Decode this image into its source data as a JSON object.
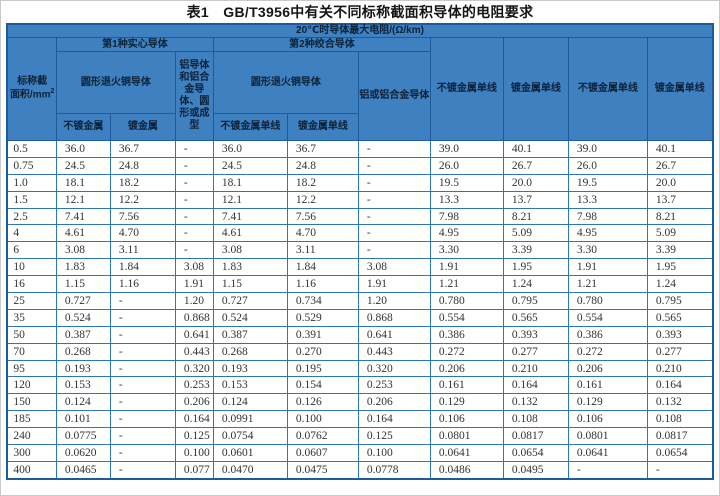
{
  "title": "表1　GB/T3956中有关不同标称截面积导体的电阻要求",
  "colors": {
    "header_bg": "#3e80c0",
    "header_border": "#1d5c9c",
    "grid_border": "#2e75b6",
    "data_text": "#333333"
  },
  "header": {
    "max_resistance": "20℃时导体最大电阻/(Ω/km)",
    "area_line1": "标称截",
    "area_line2": "面积/mm",
    "area_sup": "2",
    "group_solid": "第1种实心导体",
    "group_stranded": "第2种绞合导体",
    "copper_solid": "圆形退火铜导体",
    "copper_stranded": "圆形退火铜导体",
    "aluminium_solid": "铝导体和铝合金导体、圆形或成型",
    "aluminium_stranded": "铝或铝合金导体",
    "unplated": "不镀金属",
    "plated": "镀金属",
    "unplated_wire": "不镀金属单线",
    "plated_wire": "镀金属单线",
    "col8": "不镀金属单线",
    "col9": "镀金属单线",
    "col10": "不镀金属单线",
    "col11": "镀金属单线"
  },
  "table": {
    "rows": [
      [
        "0.5",
        "36.0",
        "36.7",
        "-",
        "36.0",
        "36.7",
        "-",
        "39.0",
        "40.1",
        "39.0",
        "40.1"
      ],
      [
        "0.75",
        "24.5",
        "24.8",
        "-",
        "24.5",
        "24.8",
        "-",
        "26.0",
        "26.7",
        "26.0",
        "26.7"
      ],
      [
        "1.0",
        "18.1",
        "18.2",
        "-",
        "18.1",
        "18.2",
        "-",
        "19.5",
        "20.0",
        "19.5",
        "20.0"
      ],
      [
        "1.5",
        "12.1",
        "12.2",
        "-",
        "12.1",
        "12.2",
        "-",
        "13.3",
        "13.7",
        "13.3",
        "13.7"
      ],
      [
        "2.5",
        "7.41",
        "7.56",
        "-",
        "7.41",
        "7.56",
        "-",
        "7.98",
        "8.21",
        "7.98",
        "8.21"
      ],
      [
        "4",
        "4.61",
        "4.70",
        "-",
        "4.61",
        "4.70",
        "-",
        "4.95",
        "5.09",
        "4.95",
        "5.09"
      ],
      [
        "6",
        "3.08",
        "3.11",
        "-",
        "3.08",
        "3.11",
        "-",
        "3.30",
        "3.39",
        "3.30",
        "3.39"
      ],
      [
        "10",
        "1.83",
        "1.84",
        "3.08",
        "1.83",
        "1.84",
        "3.08",
        "1.91",
        "1.95",
        "1.91",
        "1.95"
      ],
      [
        "16",
        "1.15",
        "1.16",
        "1.91",
        "1.15",
        "1.16",
        "1.91",
        "1.21",
        "1.24",
        "1.21",
        "1.24"
      ],
      [
        "25",
        "0.727",
        "-",
        "1.20",
        "0.727",
        "0.734",
        "1.20",
        "0.780",
        "0.795",
        "0.780",
        "0.795"
      ],
      [
        "35",
        "0.524",
        "-",
        "0.868",
        "0.524",
        "0.529",
        "0.868",
        "0.554",
        "0.565",
        "0.554",
        "0.565"
      ],
      [
        "50",
        "0.387",
        "-",
        "0.641",
        "0.387",
        "0.391",
        "0.641",
        "0.386",
        "0.393",
        "0.386",
        "0.393"
      ],
      [
        "70",
        "0.268",
        "-",
        "0.443",
        "0.268",
        "0.270",
        "0.443",
        "0.272",
        "0.277",
        "0.272",
        "0.277"
      ],
      [
        "95",
        "0.193",
        "-",
        "0.320",
        "0.193",
        "0.195",
        "0.320",
        "0.206",
        "0.210",
        "0.206",
        "0.210"
      ],
      [
        "120",
        "0.153",
        "-",
        "0.253",
        "0.153",
        "0.154",
        "0.253",
        "0.161",
        "0.164",
        "0.161",
        "0.164"
      ],
      [
        "150",
        "0.124",
        "-",
        "0.206",
        "0.124",
        "0.126",
        "0.206",
        "0.129",
        "0.132",
        "0.129",
        "0.132"
      ],
      [
        "185",
        "0.101",
        "-",
        "0.164",
        "0.0991",
        "0.100",
        "0.164",
        "0.106",
        "0.108",
        "0.106",
        "0.108"
      ],
      [
        "240",
        "0.0775",
        "-",
        "0.125",
        "0.0754",
        "0.0762",
        "0.125",
        "0.0801",
        "0.0817",
        "0.0801",
        "0.0817"
      ],
      [
        "300",
        "0.0620",
        "-",
        "0.100",
        "0.0601",
        "0.0607",
        "0.100",
        "0.0641",
        "0.0654",
        "0.0641",
        "0.0654"
      ],
      [
        "400",
        "0.0465",
        "-",
        "0.077",
        "0.0470",
        "0.0475",
        "0.0778",
        "0.0486",
        "0.0495",
        "-",
        "-"
      ]
    ]
  }
}
